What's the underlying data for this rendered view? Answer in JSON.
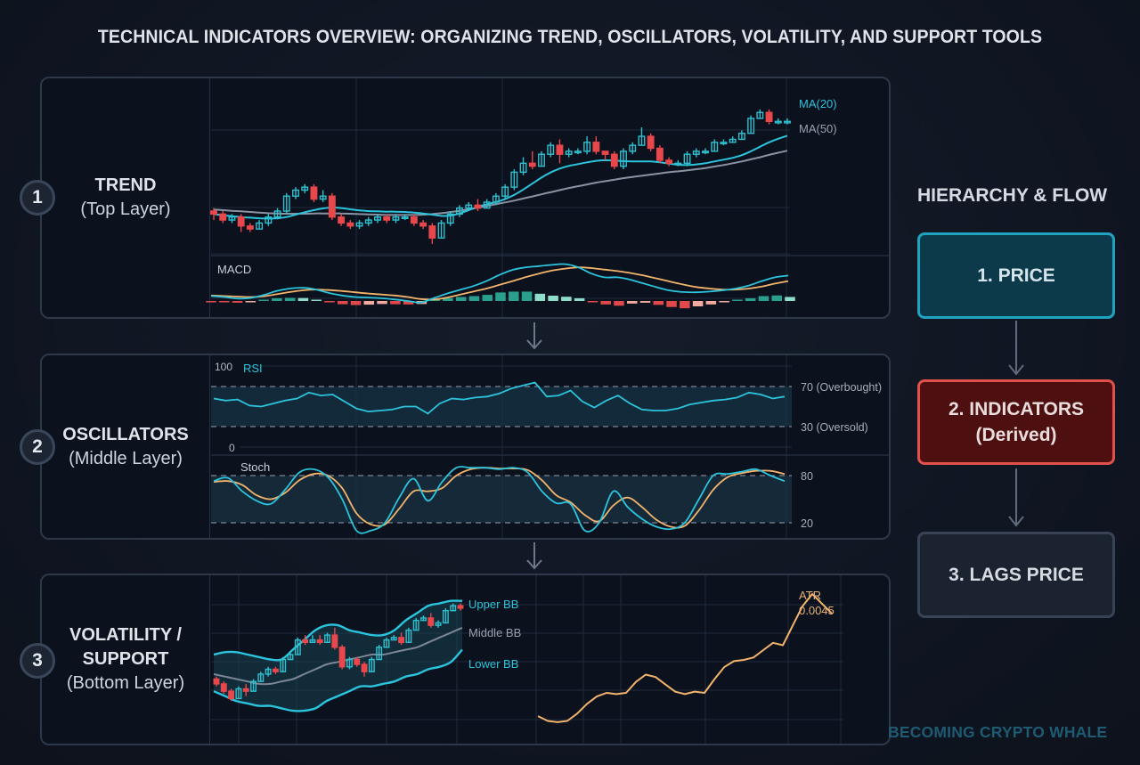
{
  "title": "TECHNICAL INDICATORS OVERVIEW: ORGANIZING TREND, OSCILLATORS, VOLATILITY, AND SUPPORT TOOLS",
  "colors": {
    "background": "#111824",
    "panel_bg": "#0b111d",
    "panel_border": "#2d3849",
    "grid": "#1f2a3b",
    "bull": "#2fc0cf",
    "bear": "#e8474b",
    "ma20": "#2cc4dc",
    "ma50": "#8a93a3",
    "signal": "#f2b46c",
    "atr": "#f2b46c",
    "hist_pos": "#2a9f8e",
    "hist_pos_light": "#8fdccb",
    "hist_neg": "#e0484a",
    "hist_neg_light": "#f2aaa0"
  },
  "layers": [
    {
      "number": "1",
      "name": "TREND",
      "sub": "(Top Layer)"
    },
    {
      "number": "2",
      "name": "OSCILLATORS",
      "sub": "(Middle Layer)"
    },
    {
      "number": "3",
      "name_line1": "VOLATILITY /",
      "name_line2": "SUPPORT",
      "sub": "(Bottom Layer)"
    }
  ],
  "hierarchy": {
    "title": "HIERARCHY & FLOW",
    "steps": [
      {
        "label": "1. PRICE"
      },
      {
        "label": "2. INDICATORS",
        "sub": "(Derived)"
      },
      {
        "label": "3. LAGS PRICE"
      }
    ]
  },
  "watermark": "BECOMING CRYPTO WHALE",
  "chart_data": [
    {
      "id": "trend-price",
      "type": "candlestick",
      "title": "Price with Moving Averages",
      "legend": [
        "MA(20)",
        "MA(50)"
      ],
      "candles": [
        [
          50,
          49,
          51,
          47
        ],
        [
          49,
          47,
          50,
          46
        ],
        [
          47,
          48,
          49,
          46
        ],
        [
          48,
          45,
          49,
          43
        ],
        [
          45,
          44,
          46,
          43
        ],
        [
          44,
          46,
          47,
          44
        ],
        [
          46,
          48,
          49,
          45
        ],
        [
          48,
          50,
          51,
          48
        ],
        [
          50,
          55,
          56,
          49
        ],
        [
          55,
          57,
          58,
          54
        ],
        [
          57,
          58,
          59,
          56
        ],
        [
          58,
          54,
          59,
          53
        ],
        [
          54,
          55,
          57,
          53
        ],
        [
          55,
          48,
          56,
          47
        ],
        [
          48,
          46,
          49,
          45
        ],
        [
          46,
          45,
          47,
          44
        ],
        [
          45,
          46,
          47,
          44
        ],
        [
          46,
          47,
          48,
          45
        ],
        [
          47,
          48,
          49,
          46
        ],
        [
          48,
          47,
          49,
          46
        ],
        [
          47,
          48,
          49,
          46
        ],
        [
          48,
          48,
          49,
          47
        ],
        [
          48,
          46,
          49,
          45
        ],
        [
          46,
          45,
          47,
          44
        ],
        [
          45,
          41,
          46,
          39
        ],
        [
          41,
          46,
          47,
          41
        ],
        [
          46,
          49,
          50,
          45
        ],
        [
          49,
          51,
          52,
          48
        ],
        [
          51,
          52,
          53,
          50
        ],
        [
          52,
          51,
          54,
          50
        ],
        [
          51,
          53,
          54,
          51
        ],
        [
          53,
          55,
          56,
          52
        ],
        [
          55,
          58,
          59,
          54
        ],
        [
          58,
          63,
          64,
          57
        ],
        [
          63,
          66,
          68,
          62
        ],
        [
          66,
          65,
          70,
          64
        ],
        [
          65,
          69,
          70,
          65
        ],
        [
          69,
          72,
          73,
          68
        ],
        [
          72,
          69,
          74,
          66
        ],
        [
          69,
          70,
          71,
          68
        ],
        [
          70,
          70,
          71,
          69
        ],
        [
          70,
          73,
          75,
          69
        ],
        [
          73,
          70,
          75,
          69
        ],
        [
          70,
          69,
          70,
          67
        ],
        [
          69,
          65,
          70,
          64
        ],
        [
          65,
          70,
          71,
          64
        ],
        [
          70,
          72,
          73,
          69
        ],
        [
          72,
          75,
          78,
          72
        ],
        [
          75,
          71,
          76,
          70
        ],
        [
          71,
          67,
          72,
          66
        ],
        [
          67,
          66,
          68,
          65
        ],
        [
          66,
          66,
          67,
          65
        ],
        [
          66,
          69,
          70,
          65
        ],
        [
          69,
          70,
          71,
          68
        ],
        [
          70,
          70,
          71,
          69
        ],
        [
          70,
          73,
          74,
          70
        ],
        [
          73,
          73,
          74,
          72
        ],
        [
          73,
          74,
          75,
          73
        ],
        [
          74,
          76,
          77,
          74
        ],
        [
          76,
          81,
          82,
          76
        ],
        [
          81,
          83,
          84,
          81
        ],
        [
          83,
          80,
          84,
          79
        ],
        [
          80,
          80,
          81,
          79
        ],
        [
          80,
          80,
          81,
          79
        ]
      ],
      "ma20": [
        49,
        48.6,
        48.3,
        48,
        47.8,
        47.6,
        47.5,
        47.6,
        48,
        48.8,
        49.6,
        50.3,
        50.9,
        51.2,
        51,
        50.6,
        50.2,
        50,
        49.9,
        49.8,
        49.8,
        49.7,
        49.5,
        49.2,
        48.8,
        48.4,
        48.5,
        49.2,
        50.3,
        51.4,
        52.3,
        53,
        54,
        55.4,
        57.2,
        59.2,
        61.2,
        62.9,
        64.2,
        65.1,
        65.7,
        66.3,
        66.8,
        67,
        66.9,
        66.7,
        66.6,
        66.6,
        66.6,
        66.3,
        65.9,
        65.5,
        65.4,
        65.6,
        66,
        66.6,
        67.2,
        67.8,
        68.7,
        70,
        71.5,
        73,
        74.2,
        75.2
      ],
      "ma50": [
        50.5,
        50.3,
        50.1,
        49.9,
        49.7,
        49.5,
        49.3,
        49.2,
        49.1,
        49.1,
        49.1,
        49.2,
        49.2,
        49.2,
        49.2,
        49.1,
        49,
        48.9,
        48.8,
        48.7,
        48.7,
        48.7,
        48.7,
        48.8,
        49,
        49.3,
        49.7,
        50.1,
        50.6,
        51.1,
        51.7,
        52.3,
        52.9,
        53.5,
        54.2,
        54.9,
        55.6,
        56.3,
        57,
        57.7,
        58.3,
        58.9,
        59.5,
        60,
        60.5,
        61,
        61.4,
        61.8,
        62.2,
        62.6,
        63,
        63.3,
        63.6,
        64,
        64.4,
        64.9,
        65.4,
        66,
        66.6,
        67.3,
        68,
        68.8,
        69.5,
        70.2
      ],
      "ylim": [
        36,
        92
      ]
    },
    {
      "id": "macd",
      "type": "line+bar",
      "title": "MACD",
      "macd": [
        2,
        1.6,
        1,
        1.2,
        2.4,
        4,
        5,
        5.3,
        4.6,
        3.2,
        2.2,
        1.6,
        1.4,
        1.1,
        0.6,
        0,
        -0.6,
        1.2,
        3,
        4.5,
        6,
        8,
        10.5,
        12.5,
        13.5,
        14,
        14.5,
        14.8,
        13.5,
        11,
        9.5,
        9.5,
        8.5,
        7,
        5.5,
        4.2,
        3.6,
        3.5,
        3.8,
        4.3,
        5,
        6.2,
        8,
        9.5,
        10.2
      ],
      "signal": [
        2.2,
        2,
        1.8,
        1.6,
        1.9,
        2.7,
        3.6,
        4.3,
        4.6,
        4.4,
        4,
        3.5,
        3,
        2.6,
        2.2,
        1.6,
        0.8,
        0.6,
        1.4,
        2.6,
        3.8,
        5,
        6.5,
        8,
        9.6,
        11,
        12.2,
        13,
        13.5,
        13.2,
        12.6,
        12,
        11.2,
        10.2,
        9,
        7.8,
        6.6,
        5.6,
        5,
        4.6,
        4.6,
        5,
        5.8,
        7,
        8
      ],
      "histogram": [
        -0.2,
        -0.5,
        -0.8,
        -0.5,
        0.5,
        1.3,
        1.5,
        1.4,
        0.5,
        -0.2,
        -1.5,
        -1.9,
        -1.7,
        -1.4,
        -1.5,
        -1.6,
        -1.4,
        0.6,
        1.4,
        1.9,
        2.3,
        2.9,
        4,
        4.4,
        4.4,
        3.4,
        2.5,
        2,
        1.3,
        -0.5,
        -1.6,
        -2.2,
        -1.2,
        -0.8,
        -1.8,
        -2.8,
        -3.4,
        -2.5,
        -1.6,
        -0.6,
        0.6,
        1.3,
        2.3,
        2.6,
        1.9
      ]
    },
    {
      "id": "rsi",
      "type": "line",
      "title": "RSI",
      "yticks": [
        0,
        100
      ],
      "levels": [
        {
          "value": 70,
          "label": "70 (Overbought)"
        },
        {
          "value": 30,
          "label": "30 (Oversold)"
        }
      ],
      "values": [
        58,
        56,
        57,
        51,
        50,
        53,
        56,
        58,
        64,
        61,
        62,
        55,
        48,
        45,
        46,
        47,
        50,
        50,
        43,
        53,
        58,
        57,
        59,
        60,
        63,
        68,
        71,
        74,
        60,
        61,
        66,
        55,
        49,
        56,
        61,
        53,
        47,
        46,
        46,
        48,
        52,
        54,
        56,
        57,
        59,
        64,
        62,
        58,
        60
      ],
      "ylim": [
        0,
        100
      ]
    },
    {
      "id": "stoch",
      "type": "line",
      "title": "Stoch",
      "levels": [
        {
          "value": 80,
          "label": "80"
        },
        {
          "value": 20,
          "label": "20"
        }
      ],
      "k": [
        73,
        77,
        60,
        48,
        44,
        62,
        84,
        88,
        78,
        50,
        10,
        10,
        20,
        52,
        76,
        48,
        72,
        90,
        90,
        90,
        88,
        90,
        84,
        60,
        45,
        44,
        10,
        20,
        60,
        40,
        25,
        15,
        12,
        20,
        50,
        80,
        82,
        85,
        88,
        80,
        73
      ],
      "d": [
        72,
        73,
        68,
        55,
        50,
        58,
        74,
        82,
        80,
        64,
        32,
        18,
        18,
        38,
        60,
        60,
        64,
        80,
        88,
        90,
        89,
        89,
        87,
        74,
        55,
        46,
        30,
        22,
        42,
        52,
        40,
        24,
        15,
        16,
        36,
        62,
        78,
        83,
        86,
        86,
        82
      ],
      "ylim": [
        0,
        100
      ]
    },
    {
      "id": "bollinger",
      "type": "candlestick+bands",
      "legend": [
        "Upper BB",
        "Middle BB",
        "Lower BB"
      ],
      "candles": [
        [
          40,
          38,
          41,
          37
        ],
        [
          38,
          35,
          39,
          34
        ],
        [
          35,
          32,
          36,
          31
        ],
        [
          32,
          36,
          37,
          32
        ],
        [
          36,
          35,
          38,
          33
        ],
        [
          35,
          39,
          40,
          35
        ],
        [
          39,
          42,
          43,
          39
        ],
        [
          42,
          44,
          45,
          41
        ],
        [
          44,
          43,
          45,
          42
        ],
        [
          43,
          48,
          49,
          43
        ],
        [
          48,
          50,
          51,
          48
        ],
        [
          50,
          56,
          57,
          50
        ],
        [
          56,
          55,
          58,
          54
        ],
        [
          55,
          56,
          58,
          55
        ],
        [
          56,
          55,
          58,
          54
        ],
        [
          55,
          58,
          59,
          55
        ],
        [
          58,
          53,
          61,
          52
        ],
        [
          53,
          45,
          54,
          44
        ],
        [
          45,
          48,
          49,
          44
        ],
        [
          48,
          46,
          49,
          45
        ],
        [
          46,
          43,
          47,
          41
        ],
        [
          43,
          48,
          49,
          43
        ],
        [
          48,
          53,
          54,
          48
        ],
        [
          53,
          56,
          57,
          53
        ],
        [
          56,
          57,
          58,
          56
        ],
        [
          57,
          55,
          59,
          54
        ],
        [
          55,
          60,
          61,
          55
        ],
        [
          60,
          64,
          65,
          60
        ],
        [
          64,
          65,
          66,
          64
        ],
        [
          65,
          62,
          67,
          61
        ],
        [
          62,
          63,
          64,
          61
        ],
        [
          63,
          68,
          69,
          63
        ],
        [
          68,
          70,
          71,
          68
        ],
        [
          70,
          69,
          71,
          68
        ]
      ],
      "upper": [
        50,
        51,
        51,
        50,
        49,
        48,
        48,
        52,
        56,
        60,
        62,
        62,
        60,
        59,
        58,
        58,
        60,
        64,
        67,
        70,
        71,
        72,
        72
      ],
      "middle": [
        42,
        41,
        40,
        39,
        38,
        38,
        39,
        40,
        42,
        44,
        46,
        47,
        48,
        49,
        50,
        50,
        51,
        52,
        53,
        55,
        57,
        59,
        61
      ],
      "lower": [
        35,
        33,
        31,
        30,
        29,
        29,
        28,
        27,
        27,
        28,
        31,
        33,
        35,
        37,
        37,
        38,
        39,
        41,
        42,
        44,
        45,
        47,
        52
      ]
    },
    {
      "id": "atr",
      "type": "line",
      "title": "ATR",
      "annotation": "ATR 0.0045",
      "label": "ATR",
      "value_label": "0.0045",
      "values": [
        8,
        6,
        5.5,
        6,
        9,
        13,
        16,
        17.5,
        17,
        17.5,
        22,
        25,
        24,
        21,
        18,
        17,
        18,
        17.5,
        23,
        28,
        30.5,
        31,
        32,
        35,
        38,
        37,
        45,
        53,
        58,
        54,
        50
      ],
      "ylim": [
        0,
        62
      ]
    }
  ]
}
